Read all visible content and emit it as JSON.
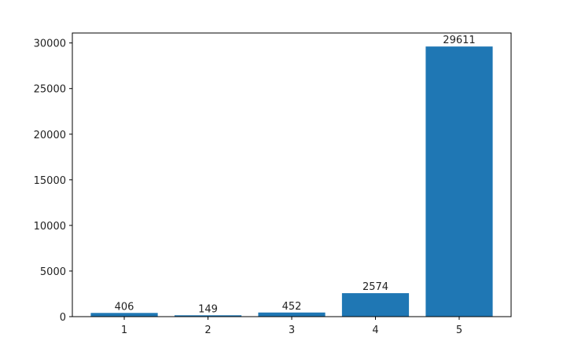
{
  "chart_data": {
    "type": "bar",
    "x": [
      1,
      2,
      3,
      4,
      5
    ],
    "values": [
      406,
      149,
      452,
      2574,
      29611
    ],
    "color": "#1f77b4",
    "bar_width": 0.8,
    "xlim": [
      0.38,
      5.62
    ],
    "xticks": [
      1,
      2,
      3,
      4,
      5
    ],
    "ylim": [
      0,
      31091.55
    ],
    "yticks": [
      0,
      5000,
      10000,
      15000,
      20000,
      25000,
      30000
    ],
    "show_value_labels": true
  }
}
